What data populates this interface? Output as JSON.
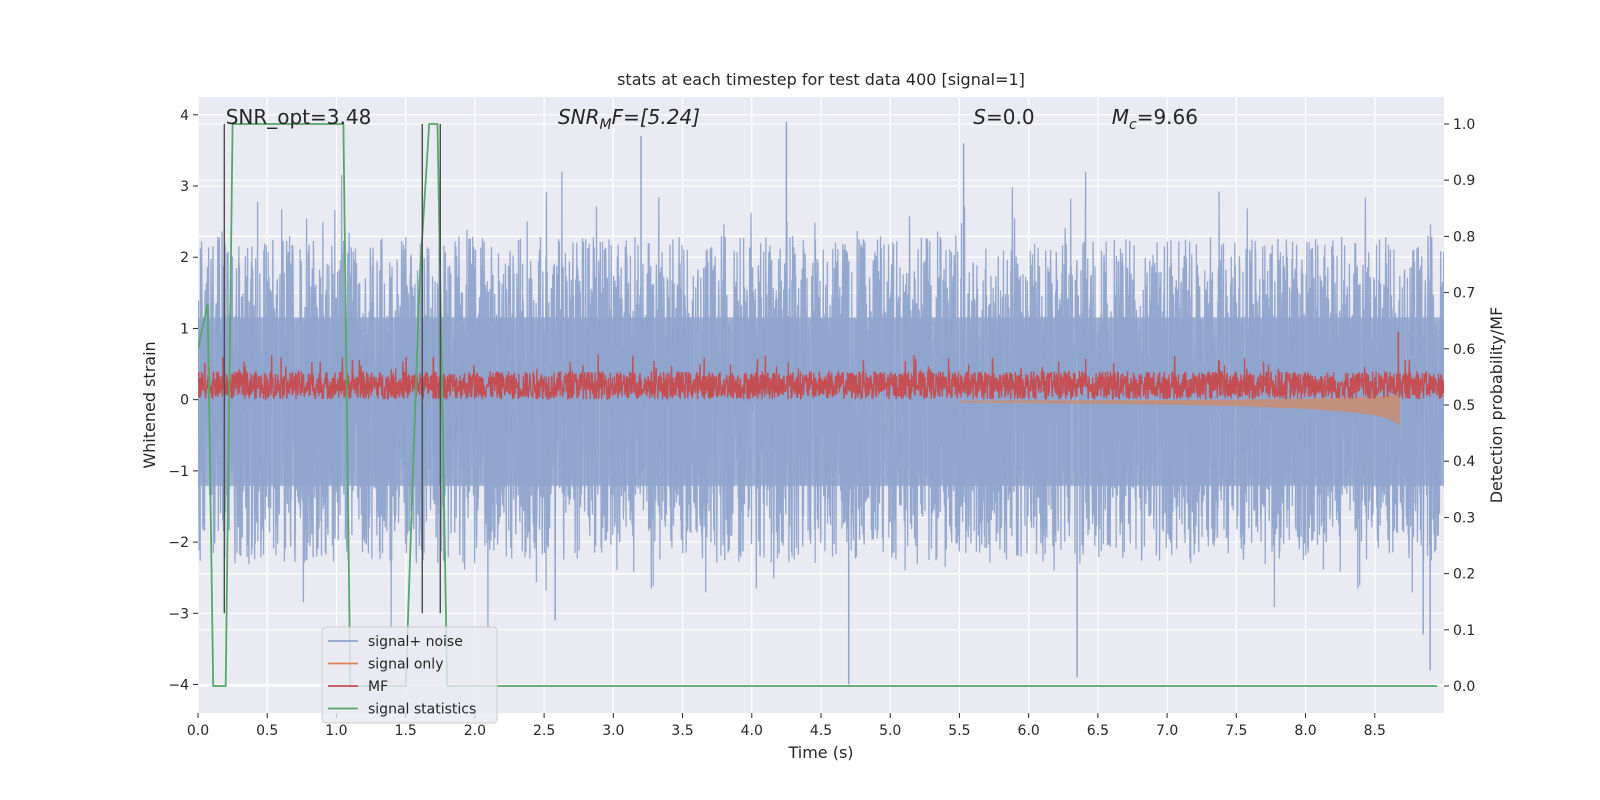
{
  "chart_data": {
    "type": "line",
    "title": "stats at each timestep for test data 400 [signal=1]",
    "xlabel": "Time (s)",
    "ylabel": "Whitened strain",
    "y2label": "Detection probability/MF",
    "xlim": [
      0.0,
      9.0
    ],
    "ylim": [
      -4.4,
      4.25
    ],
    "y2lim": [
      -0.048,
      1.048
    ],
    "x_ticks": [
      0.0,
      0.5,
      1.0,
      1.5,
      2.0,
      2.5,
      3.0,
      3.5,
      4.0,
      4.5,
      5.0,
      5.5,
      6.0,
      6.5,
      7.0,
      7.5,
      8.0,
      8.5
    ],
    "x_tick_labels": [
      "0.0",
      "0.5",
      "1.0",
      "1.5",
      "2.0",
      "2.5",
      "3.0",
      "3.5",
      "4.0",
      "4.5",
      "5.0",
      "5.5",
      "6.0",
      "6.5",
      "7.0",
      "7.5",
      "8.0",
      "8.5"
    ],
    "y_ticks": [
      -4,
      -3,
      -2,
      -1,
      0,
      1,
      2,
      3,
      4
    ],
    "y_tick_labels": [
      "−4",
      "−3",
      "−2",
      "−1",
      "0",
      "1",
      "2",
      "3",
      "4"
    ],
    "y2_ticks": [
      0.0,
      0.1,
      0.2,
      0.3,
      0.4,
      0.5,
      0.6,
      0.7,
      0.8,
      0.9,
      1.0
    ],
    "y2_tick_labels": [
      "0.0",
      "0.1",
      "0.2",
      "0.3",
      "0.4",
      "0.5",
      "0.6",
      "0.7",
      "0.8",
      "0.9",
      "1.0"
    ],
    "grid": true,
    "annotations": {
      "snr_opt": "SNR_opt=3.48",
      "snr_mf_name": "SNR",
      "snr_mf_sub": "M",
      "snr_mf_rest": "F=[5.24]",
      "s_name": "S",
      "s_rest": "=0.0",
      "mc_name": "M",
      "mc_sub": "c",
      "mc_rest": "=9.66"
    },
    "legend": {
      "placement": "lower-left",
      "entries": [
        "signal+ noise",
        "signal only",
        "MF",
        "signal statistics"
      ]
    },
    "series": [
      {
        "name": "signal+ noise",
        "axis": "left",
        "color": "#8fa4cc",
        "style": "noise",
        "x_range": [
          0.0,
          9.0
        ],
        "samples": 4600,
        "envelope_lower": -2.2,
        "envelope_upper": 2.1,
        "peak_values": [
          [
            4.25,
            3.9
          ],
          [
            5.53,
            3.6
          ],
          [
            3.2,
            3.7
          ],
          [
            4.7,
            -4.0
          ],
          [
            6.35,
            -3.9
          ],
          [
            8.9,
            -3.8
          ],
          [
            8.85,
            -3.3
          ],
          [
            2.58,
            -3.1
          ]
        ]
      },
      {
        "name": "signal only",
        "axis": "left",
        "color": "#dd8452",
        "style": "chirp",
        "x": [
          5.5,
          6.0,
          6.5,
          7.0,
          7.5,
          8.0,
          8.3,
          8.5,
          8.6,
          8.65,
          8.68
        ],
        "amplitude": [
          0.02,
          0.03,
          0.04,
          0.05,
          0.07,
          0.11,
          0.15,
          0.2,
          0.25,
          0.3,
          0.35
        ]
      },
      {
        "name": "MF",
        "axis": "right",
        "color": "#c44e52",
        "style": "mf",
        "x_range": [
          0.0,
          9.0
        ],
        "baseline": 0.535,
        "spread": 0.025,
        "peaks": [
          [
            8.67,
            0.63
          ],
          [
            0.18,
            0.585
          ],
          [
            1.7,
            0.585
          ],
          [
            0.05,
            0.575
          ]
        ]
      },
      {
        "name": "signal statistics",
        "axis": "right",
        "color": "#55a868",
        "style": "line",
        "x": [
          0.0,
          0.07,
          0.11,
          0.17,
          0.2,
          0.25,
          0.35,
          0.6,
          1.0,
          1.05,
          1.1,
          1.5,
          1.6,
          1.67,
          1.73,
          1.8,
          1.88,
          1.92,
          2.0,
          3.0,
          5.0,
          7.0,
          8.95
        ],
        "y": [
          0.6,
          0.68,
          0.0,
          0.0,
          0.0,
          1.0,
          1.0,
          1.0,
          1.0,
          1.0,
          0.0,
          0.0,
          0.72,
          1.0,
          1.0,
          0.0,
          0.0,
          0.0,
          0.0,
          0.0,
          0.0,
          0.0,
          0.0
        ]
      }
    ],
    "vertical_markers": {
      "color": "#4d4d4d",
      "x": [
        0.19,
        1.62,
        1.75
      ]
    }
  }
}
